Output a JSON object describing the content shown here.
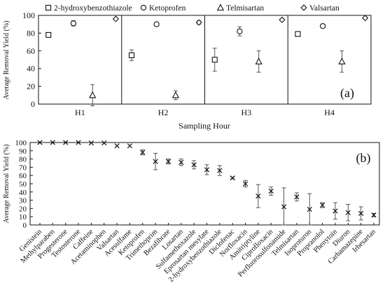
{
  "chart_data": [
    {
      "panel": "(a)",
      "type": "scatter",
      "ylabel": "Average Removal Yield  (%)",
      "xlabel": "Sampling Hour",
      "ylim": [
        0,
        100
      ],
      "yticks": [
        0,
        20,
        40,
        60,
        80,
        100
      ],
      "categories": [
        "H1",
        "H2",
        "H3",
        "H4"
      ],
      "legend_position": "top",
      "grid": false,
      "series": [
        {
          "name": "2-hydroxybenzothiazole",
          "marker": "square",
          "values": [
            78,
            55,
            50,
            79
          ],
          "errors": [
            2,
            6,
            13,
            2
          ]
        },
        {
          "name": "Ketoprofen",
          "marker": "circle",
          "values": [
            91,
            90,
            82,
            88
          ],
          "errors": [
            3,
            2,
            5,
            2
          ]
        },
        {
          "name": "Telmisartan",
          "marker": "triangle",
          "values": [
            10,
            10,
            48,
            48
          ],
          "errors": [
            12,
            5,
            12,
            12
          ]
        },
        {
          "name": "Valsartan",
          "marker": "diamond",
          "values": [
            96,
            92,
            95,
            97
          ],
          "errors": [
            0,
            2,
            0,
            0
          ]
        }
      ]
    },
    {
      "panel": "(b)",
      "type": "scatter",
      "ylabel": "Average Removal  Yield  (%)",
      "ylim": [
        0,
        100
      ],
      "yticks": [
        0,
        10,
        20,
        30,
        40,
        50,
        60,
        70,
        80,
        90,
        100
      ],
      "grid": false,
      "categories": [
        "Genistein",
        "Methylparaben",
        "Progesterone",
        "Testosterone",
        "Caffeine",
        "Acetaminophen",
        "Valsartan",
        "Acesulfame",
        "Ketoprofen",
        "Trimethoprim",
        "Bezafibrate",
        "Losartan",
        "Sulfamethoxazole",
        "Eprosartan mesylate",
        "2-hydroxybenzothiazole",
        "Diclofenac",
        "Norfloxacin",
        "Amitriptyline",
        "Ciprofloxacin",
        "Perfluorosulfonamide",
        "Telmisartan",
        "Isoproturon",
        "Propranolol",
        "Phenytoin",
        "Diuron",
        "Carbamazepine",
        "Irbesartan"
      ],
      "values": [
        100,
        100,
        100,
        100,
        99.5,
        99.5,
        96,
        96,
        88,
        77,
        77,
        76,
        73,
        67,
        66,
        57,
        50,
        35,
        41,
        22,
        34,
        19,
        24,
        17,
        15,
        14,
        12
      ],
      "errors": [
        0,
        0,
        0,
        0,
        0,
        0,
        0,
        0,
        3,
        10,
        3,
        4,
        5,
        6,
        6,
        1,
        4,
        14,
        5,
        23,
        5,
        19,
        3,
        10,
        10,
        8,
        2
      ]
    }
  ]
}
